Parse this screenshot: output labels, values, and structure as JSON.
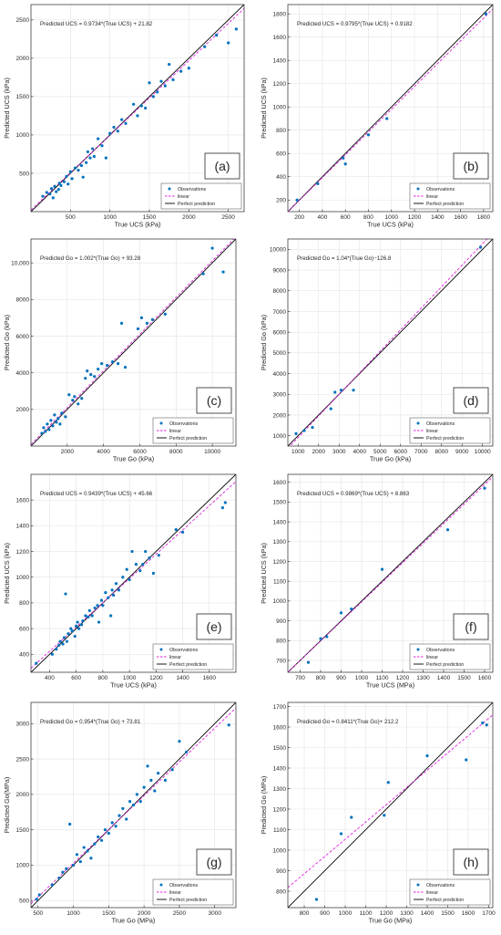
{
  "colors": {
    "observations": "#0072BD",
    "linear": "#E020E0",
    "perfect": "#000000",
    "grid": "#e3e3e3",
    "axis": "#262626"
  },
  "chart_data": [
    {
      "type": "scatter",
      "panel_label": "(a)",
      "equation": "Predicted UCS = 0.9734*(True UCS) + 21.82",
      "xlabel": "True UCS (kPa)",
      "ylabel": "Predicted UCS (kPa)",
      "xlim": [
        0,
        2700
      ],
      "ylim": [
        0,
        2700
      ],
      "xticks": [
        500,
        1000,
        1500,
        2000,
        2500
      ],
      "yticks": [
        500,
        1000,
        1500,
        2000,
        2500
      ],
      "legend": [
        "Observations",
        "linear",
        "Perfect prediction"
      ],
      "legend_loc": "bottom-right",
      "fit": {
        "slope": 0.9734,
        "intercept": 21.82
      },
      "points": [
        [
          150,
          200
        ],
        [
          200,
          250
        ],
        [
          240,
          230
        ],
        [
          260,
          300
        ],
        [
          280,
          180
        ],
        [
          300,
          330
        ],
        [
          320,
          260
        ],
        [
          350,
          290
        ],
        [
          360,
          370
        ],
        [
          380,
          340
        ],
        [
          420,
          390
        ],
        [
          450,
          460
        ],
        [
          470,
          360
        ],
        [
          500,
          520
        ],
        [
          520,
          430
        ],
        [
          560,
          570
        ],
        [
          600,
          540
        ],
        [
          640,
          600
        ],
        [
          660,
          450
        ],
        [
          700,
          640
        ],
        [
          720,
          780
        ],
        [
          750,
          700
        ],
        [
          780,
          820
        ],
        [
          800,
          720
        ],
        [
          850,
          950
        ],
        [
          900,
          860
        ],
        [
          950,
          700
        ],
        [
          1000,
          1020
        ],
        [
          1050,
          1100
        ],
        [
          1100,
          1050
        ],
        [
          1150,
          1200
        ],
        [
          1200,
          1150
        ],
        [
          1300,
          1400
        ],
        [
          1350,
          1250
        ],
        [
          1400,
          1380
        ],
        [
          1450,
          1350
        ],
        [
          1500,
          1680
        ],
        [
          1550,
          1500
        ],
        [
          1600,
          1560
        ],
        [
          1650,
          1700
        ],
        [
          1700,
          1640
        ],
        [
          1750,
          1920
        ],
        [
          1800,
          1720
        ],
        [
          1900,
          1830
        ],
        [
          2000,
          1870
        ],
        [
          2200,
          2150
        ],
        [
          2350,
          2300
        ],
        [
          2500,
          2200
        ],
        [
          2600,
          2380
        ]
      ]
    },
    {
      "type": "scatter",
      "panel_label": "(b)",
      "equation": "Predicted UCS = 0.9795*(True UCS) + 0.9182",
      "xlabel": "True UCS (kPa)",
      "ylabel": "Predicted UCS (kPa)",
      "xlim": [
        100,
        1880
      ],
      "ylim": [
        100,
        1880
      ],
      "xticks": [
        200,
        400,
        600,
        800,
        1000,
        1200,
        1400,
        1600,
        1800
      ],
      "yticks": [
        200,
        400,
        600,
        800,
        1000,
        1200,
        1400,
        1600,
        1800
      ],
      "legend": [
        "Observations",
        "linear",
        "Perfect prediction"
      ],
      "legend_loc": "bottom-right",
      "fit": {
        "slope": 0.9795,
        "intercept": 0.9182
      },
      "points": [
        [
          180,
          200
        ],
        [
          360,
          340
        ],
        [
          580,
          560
        ],
        [
          600,
          510
        ],
        [
          800,
          760
        ],
        [
          960,
          900
        ],
        [
          1820,
          1800
        ]
      ]
    },
    {
      "type": "scatter",
      "panel_label": "(c)",
      "equation": "Predicted Go = 1.002*(True Go) + 93.28",
      "xlabel": "True Go (kPa)",
      "ylabel": "Predicted Go (kPa)",
      "xlim": [
        0,
        11300
      ],
      "ylim": [
        0,
        11300
      ],
      "xticks": [
        2000,
        4000,
        6000,
        8000,
        10000
      ],
      "yticks": [
        2000,
        4000,
        6000,
        8000,
        10000
      ],
      "ytick_labels": [
        "2000",
        "4000",
        "6000",
        "8000",
        "10,000"
      ],
      "legend": [
        "Observations",
        "linear",
        "Perfect prediction"
      ],
      "legend_loc": "bottom-right",
      "fit": {
        "slope": 1.002,
        "intercept": 93.28
      },
      "points": [
        [
          600,
          700
        ],
        [
          700,
          1000
        ],
        [
          800,
          800
        ],
        [
          900,
          1200
        ],
        [
          1000,
          900
        ],
        [
          1100,
          1400
        ],
        [
          1200,
          1100
        ],
        [
          1300,
          1700
        ],
        [
          1400,
          1300
        ],
        [
          1500,
          1500
        ],
        [
          1600,
          1200
        ],
        [
          1700,
          1800
        ],
        [
          1900,
          1600
        ],
        [
          2100,
          2800
        ],
        [
          2300,
          2500
        ],
        [
          2400,
          2700
        ],
        [
          2600,
          2300
        ],
        [
          2800,
          2600
        ],
        [
          3000,
          3700
        ],
        [
          3100,
          4100
        ],
        [
          3300,
          3900
        ],
        [
          3500,
          3800
        ],
        [
          3700,
          4200
        ],
        [
          3900,
          4500
        ],
        [
          4200,
          4400
        ],
        [
          4500,
          4600
        ],
        [
          4800,
          4500
        ],
        [
          5000,
          6700
        ],
        [
          5200,
          4300
        ],
        [
          5900,
          6400
        ],
        [
          6100,
          7000
        ],
        [
          6400,
          6700
        ],
        [
          6700,
          6900
        ],
        [
          7400,
          7200
        ],
        [
          9500,
          9400
        ],
        [
          10000,
          10800
        ],
        [
          10600,
          9500
        ]
      ]
    },
    {
      "type": "scatter",
      "panel_label": "(d)",
      "equation": "Predicted Go = 1.04*(True Go)−126.8",
      "xlabel": "True Go (kPa)",
      "ylabel": "Predicted Go (kPa)",
      "xlim": [
        500,
        10500
      ],
      "ylim": [
        500,
        10500
      ],
      "xticks": [
        1000,
        2000,
        3000,
        4000,
        5000,
        6000,
        7000,
        8000,
        9000,
        10000
      ],
      "yticks": [
        1000,
        2000,
        3000,
        4000,
        5000,
        6000,
        7000,
        8000,
        9000,
        10000
      ],
      "legend": [
        "Observations",
        "linear",
        "Perfect prediction"
      ],
      "legend_loc": "bottom-right",
      "fit": {
        "slope": 1.04,
        "intercept": -126.8
      },
      "points": [
        [
          900,
          1100
        ],
        [
          1300,
          1250
        ],
        [
          1700,
          1400
        ],
        [
          2600,
          2300
        ],
        [
          2800,
          3100
        ],
        [
          3100,
          3200
        ],
        [
          3700,
          3200
        ],
        [
          9900,
          10100
        ]
      ]
    },
    {
      "type": "scatter",
      "panel_label": "(e)",
      "equation": "Predicted UCS = 0.9439*(True UCS) + 45.66",
      "xlabel": "True UCS (kPa)",
      "ylabel": "Predicted UCS (kPa)",
      "xlim": [
        260,
        1800
      ],
      "ylim": [
        260,
        1800
      ],
      "xticks": [
        400,
        600,
        800,
        1000,
        1200,
        1400,
        1600
      ],
      "yticks": [
        400,
        600,
        800,
        1000,
        1200,
        1400,
        1600
      ],
      "legend": [
        "Observations",
        "linear",
        "Perfect prediction"
      ],
      "legend_loc": "bottom-right",
      "fit": {
        "slope": 0.9439,
        "intercept": 45.66
      },
      "points": [
        [
          300,
          330
        ],
        [
          420,
          400
        ],
        [
          450,
          440
        ],
        [
          470,
          470
        ],
        [
          480,
          500
        ],
        [
          500,
          480
        ],
        [
          510,
          530
        ],
        [
          520,
          870
        ],
        [
          530,
          500
        ],
        [
          540,
          560
        ],
        [
          560,
          600
        ],
        [
          570,
          580
        ],
        [
          590,
          540
        ],
        [
          600,
          620
        ],
        [
          610,
          650
        ],
        [
          620,
          600
        ],
        [
          640,
          630
        ],
        [
          650,
          660
        ],
        [
          670,
          700
        ],
        [
          690,
          690
        ],
        [
          700,
          740
        ],
        [
          720,
          700
        ],
        [
          740,
          760
        ],
        [
          760,
          780
        ],
        [
          770,
          650
        ],
        [
          790,
          820
        ],
        [
          800,
          780
        ],
        [
          820,
          880
        ],
        [
          840,
          840
        ],
        [
          860,
          700
        ],
        [
          870,
          900
        ],
        [
          880,
          860
        ],
        [
          900,
          950
        ],
        [
          920,
          900
        ],
        [
          950,
          1000
        ],
        [
          980,
          1060
        ],
        [
          1000,
          980
        ],
        [
          1020,
          1200
        ],
        [
          1050,
          1100
        ],
        [
          1080,
          1050
        ],
        [
          1100,
          1100
        ],
        [
          1120,
          1200
        ],
        [
          1150,
          1150
        ],
        [
          1180,
          1030
        ],
        [
          1220,
          1170
        ],
        [
          1350,
          1370
        ],
        [
          1400,
          1350
        ],
        [
          1700,
          1540
        ],
        [
          1720,
          1580
        ]
      ]
    },
    {
      "type": "scatter",
      "panel_label": "(f)",
      "equation": "Predicted UCS = 0.9869*(True UCS) + 8.863",
      "xlabel": "True UCS (MPa)",
      "ylabel": "Predicted UCS (kPa)",
      "xlim": [
        640,
        1640
      ],
      "ylim": [
        640,
        1640
      ],
      "xticks": [
        700,
        800,
        900,
        1000,
        1100,
        1200,
        1300,
        1400,
        1500,
        1600
      ],
      "yticks": [
        700,
        800,
        900,
        1000,
        1100,
        1200,
        1300,
        1400,
        1500,
        1600
      ],
      "legend": [
        "Observations",
        "linear",
        "Perfect prediction"
      ],
      "legend_loc": "bottom-right",
      "fit": {
        "slope": 0.9869,
        "intercept": 8.863
      },
      "points": [
        [
          740,
          690
        ],
        [
          800,
          810
        ],
        [
          830,
          820
        ],
        [
          900,
          940
        ],
        [
          950,
          960
        ],
        [
          1100,
          1160
        ],
        [
          1420,
          1360
        ],
        [
          1600,
          1570
        ]
      ]
    },
    {
      "type": "scatter",
      "panel_label": "(g)",
      "equation": "Predicted Go = 0.954*(True Go) + 73.81",
      "xlabel": "True Go (MPa)",
      "ylabel": "Predicted Go(MPa)",
      "xlim": [
        400,
        3300
      ],
      "ylim": [
        400,
        3300
      ],
      "xticks": [
        500,
        1000,
        1500,
        2000,
        2500,
        3000
      ],
      "yticks": [
        500,
        1000,
        1500,
        2000,
        2500,
        3000
      ],
      "legend": [
        "Observations",
        "linear",
        "Perfect prediction"
      ],
      "legend_loc": "bottom-right",
      "fit": {
        "slope": 0.954,
        "intercept": 73.81
      },
      "points": [
        [
          480,
          520
        ],
        [
          520,
          580
        ],
        [
          700,
          720
        ],
        [
          800,
          820
        ],
        [
          850,
          900
        ],
        [
          900,
          950
        ],
        [
          950,
          1580
        ],
        [
          1000,
          1000
        ],
        [
          1050,
          1150
        ],
        [
          1100,
          1050
        ],
        [
          1150,
          1250
        ],
        [
          1200,
          1200
        ],
        [
          1250,
          1100
        ],
        [
          1300,
          1300
        ],
        [
          1350,
          1400
        ],
        [
          1400,
          1350
        ],
        [
          1450,
          1500
        ],
        [
          1500,
          1450
        ],
        [
          1550,
          1600
        ],
        [
          1600,
          1550
        ],
        [
          1650,
          1700
        ],
        [
          1700,
          1800
        ],
        [
          1750,
          1650
        ],
        [
          1800,
          1900
        ],
        [
          1850,
          1850
        ],
        [
          1900,
          2000
        ],
        [
          1950,
          1900
        ],
        [
          2000,
          2100
        ],
        [
          2050,
          2400
        ],
        [
          2100,
          2200
        ],
        [
          2150,
          2050
        ],
        [
          2200,
          2300
        ],
        [
          2300,
          2200
        ],
        [
          2400,
          2350
        ],
        [
          2500,
          2750
        ],
        [
          2600,
          2600
        ],
        [
          3200,
          2980
        ]
      ]
    },
    {
      "type": "scatter",
      "panel_label": "(h)",
      "equation": "Predicted Go = 0.8411*(True Go)+ 212.2",
      "xlabel": "True Go (MPa)",
      "ylabel": "Predicted Go (MPa)",
      "xlim": [
        720,
        1720
      ],
      "ylim": [
        720,
        1720
      ],
      "xticks": [
        800,
        900,
        1000,
        1100,
        1200,
        1300,
        1400,
        1500,
        1600,
        1700
      ],
      "yticks": [
        800,
        900,
        1000,
        1100,
        1200,
        1300,
        1400,
        1500,
        1600,
        1700
      ],
      "legend": [
        "Observations",
        "linear",
        "Perfect prediction"
      ],
      "legend_loc": "bottom-right",
      "fit": {
        "slope": 0.8411,
        "intercept": 212.2
      },
      "points": [
        [
          860,
          760
        ],
        [
          980,
          1080
        ],
        [
          1030,
          1160
        ],
        [
          1190,
          1170
        ],
        [
          1210,
          1330
        ],
        [
          1400,
          1460
        ],
        [
          1590,
          1440
        ],
        [
          1670,
          1620
        ],
        [
          1690,
          1610
        ]
      ]
    }
  ]
}
